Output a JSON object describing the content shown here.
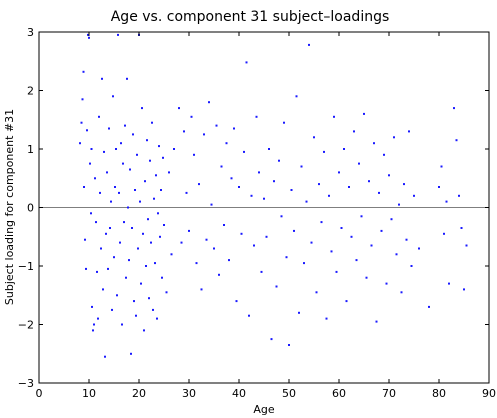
{
  "chart_data": {
    "type": "scatter",
    "title": "Age vs. component 31 subject–loadings",
    "xlabel": "Age",
    "ylabel": "Subject loading for component #31",
    "xlim": [
      0,
      90
    ],
    "ylim": [
      -3,
      3
    ],
    "xticks": [
      "0",
      "10",
      "20",
      "30",
      "40",
      "50",
      "60",
      "70",
      "80",
      "90"
    ],
    "yticks": [
      "3",
      "2",
      "1",
      "0",
      "−1",
      "−2",
      "−3"
    ],
    "grid": false,
    "reference_line_y": 0,
    "point_color": "#1a1aff",
    "points": [
      [
        8.2,
        1.1
      ],
      [
        8.5,
        1.45
      ],
      [
        8.7,
        1.85
      ],
      [
        8.9,
        2.32
      ],
      [
        9.0,
        0.35
      ],
      [
        9.2,
        -0.55
      ],
      [
        9.4,
        -1.05
      ],
      [
        9.6,
        1.32
      ],
      [
        9.8,
        2.95
      ],
      [
        10.0,
        2.9
      ],
      [
        10.2,
        0.75
      ],
      [
        10.4,
        -0.1
      ],
      [
        10.5,
        1.0
      ],
      [
        10.6,
        -1.7
      ],
      [
        10.8,
        -2.1
      ],
      [
        11.0,
        -2.0
      ],
      [
        11.2,
        0.5
      ],
      [
        11.4,
        -0.25
      ],
      [
        11.6,
        -1.1
      ],
      [
        11.8,
        -1.9
      ],
      [
        12.0,
        1.55
      ],
      [
        12.2,
        0.25
      ],
      [
        12.4,
        -0.7
      ],
      [
        12.6,
        2.2
      ],
      [
        12.8,
        -1.4
      ],
      [
        13.0,
        0.95
      ],
      [
        13.2,
        -2.55
      ],
      [
        13.4,
        -0.45
      ],
      [
        13.6,
        0.6
      ],
      [
        13.8,
        -1.05
      ],
      [
        14.0,
        1.35
      ],
      [
        14.2,
        -0.35
      ],
      [
        14.4,
        0.1
      ],
      [
        14.6,
        -1.75
      ],
      [
        14.8,
        1.9
      ],
      [
        15.0,
        -0.85
      ],
      [
        15.2,
        0.35
      ],
      [
        15.4,
        1.0
      ],
      [
        15.6,
        -1.5
      ],
      [
        15.8,
        2.95
      ],
      [
        16.0,
        0.25
      ],
      [
        16.2,
        -0.6
      ],
      [
        16.4,
        1.1
      ],
      [
        16.6,
        -2.0
      ],
      [
        16.8,
        0.75
      ],
      [
        17.0,
        -0.25
      ],
      [
        17.2,
        1.4
      ],
      [
        17.4,
        -1.2
      ],
      [
        17.6,
        2.2
      ],
      [
        17.8,
        0.0
      ],
      [
        18.0,
        -0.9
      ],
      [
        18.2,
        0.65
      ],
      [
        18.4,
        -2.5
      ],
      [
        18.6,
        -0.35
      ],
      [
        18.8,
        1.25
      ],
      [
        19.0,
        -1.6
      ],
      [
        19.2,
        0.3
      ],
      [
        19.4,
        -1.85
      ],
      [
        19.6,
        0.9
      ],
      [
        19.8,
        -0.7
      ],
      [
        20.0,
        2.95
      ],
      [
        20.2,
        0.1
      ],
      [
        20.4,
        -1.3
      ],
      [
        20.6,
        1.7
      ],
      [
        20.8,
        -0.45
      ],
      [
        21.0,
        -2.1
      ],
      [
        21.2,
        0.45
      ],
      [
        21.4,
        -1.0
      ],
      [
        21.6,
        1.15
      ],
      [
        21.8,
        -0.2
      ],
      [
        22.0,
        -1.55
      ],
      [
        22.2,
        0.8
      ],
      [
        22.4,
        -0.6
      ],
      [
        22.6,
        1.45
      ],
      [
        22.8,
        -1.75
      ],
      [
        23.0,
        0.15
      ],
      [
        23.2,
        -0.95
      ],
      [
        23.4,
        0.55
      ],
      [
        23.6,
        -1.9
      ],
      [
        23.8,
        -0.1
      ],
      [
        24.0,
        1.05
      ],
      [
        24.2,
        -0.5
      ],
      [
        24.4,
        0.3
      ],
      [
        24.6,
        -1.2
      ],
      [
        24.8,
        0.85
      ],
      [
        25.0,
        -0.3
      ],
      [
        25.5,
        -1.45
      ],
      [
        26.0,
        0.6
      ],
      [
        26.5,
        -0.8
      ],
      [
        27.0,
        1.0
      ],
      [
        28.0,
        1.7
      ],
      [
        28.5,
        -0.6
      ],
      [
        29.0,
        1.3
      ],
      [
        29.5,
        0.25
      ],
      [
        30.0,
        -0.4
      ],
      [
        30.5,
        1.55
      ],
      [
        31.0,
        0.9
      ],
      [
        31.5,
        -0.95
      ],
      [
        32.0,
        0.4
      ],
      [
        32.5,
        -1.4
      ],
      [
        33.0,
        1.25
      ],
      [
        33.5,
        -0.55
      ],
      [
        34.0,
        1.8
      ],
      [
        34.5,
        0.05
      ],
      [
        35.0,
        -0.7
      ],
      [
        35.5,
        1.4
      ],
      [
        36.0,
        -1.15
      ],
      [
        36.5,
        0.7
      ],
      [
        37.0,
        -0.3
      ],
      [
        37.5,
        1.1
      ],
      [
        38.0,
        -0.9
      ],
      [
        38.5,
        0.5
      ],
      [
        39.0,
        1.35
      ],
      [
        39.5,
        -1.6
      ],
      [
        40.0,
        0.35
      ],
      [
        40.5,
        -0.45
      ],
      [
        41.0,
        0.95
      ],
      [
        41.5,
        2.48
      ],
      [
        42.0,
        -1.85
      ],
      [
        42.5,
        0.2
      ],
      [
        43.0,
        -0.65
      ],
      [
        43.5,
        1.55
      ],
      [
        44.0,
        0.6
      ],
      [
        44.5,
        -1.1
      ],
      [
        45.0,
        0.15
      ],
      [
        45.5,
        -0.5
      ],
      [
        46.0,
        1.0
      ],
      [
        46.5,
        -2.25
      ],
      [
        47.0,
        0.45
      ],
      [
        47.5,
        -1.35
      ],
      [
        48.0,
        0.8
      ],
      [
        48.5,
        -0.15
      ],
      [
        49.0,
        1.45
      ],
      [
        49.5,
        -0.85
      ],
      [
        50.0,
        -2.35
      ],
      [
        50.5,
        0.3
      ],
      [
        51.0,
        -0.4
      ],
      [
        51.5,
        1.9
      ],
      [
        52.0,
        -1.8
      ],
      [
        52.5,
        0.7
      ],
      [
        53.0,
        -0.95
      ],
      [
        53.5,
        0.1
      ],
      [
        54.0,
        2.78
      ],
      [
        54.5,
        -0.6
      ],
      [
        55.0,
        1.2
      ],
      [
        55.5,
        -1.45
      ],
      [
        56.0,
        0.4
      ],
      [
        56.5,
        -0.25
      ],
      [
        57.0,
        0.95
      ],
      [
        57.5,
        -1.9
      ],
      [
        58.0,
        0.2
      ],
      [
        58.5,
        -0.75
      ],
      [
        59.0,
        1.55
      ],
      [
        59.5,
        -1.1
      ],
      [
        60.0,
        0.6
      ],
      [
        60.5,
        -0.35
      ],
      [
        61.0,
        1.0
      ],
      [
        61.5,
        -1.6
      ],
      [
        62.0,
        0.35
      ],
      [
        62.5,
        -0.5
      ],
      [
        63.0,
        1.3
      ],
      [
        63.5,
        -0.9
      ],
      [
        64.0,
        0.75
      ],
      [
        64.5,
        -0.15
      ],
      [
        65.0,
        1.6
      ],
      [
        65.5,
        -1.2
      ],
      [
        66.0,
        0.45
      ],
      [
        66.5,
        -0.65
      ],
      [
        67.0,
        1.1
      ],
      [
        67.5,
        -1.95
      ],
      [
        68.0,
        0.25
      ],
      [
        68.5,
        -0.4
      ],
      [
        69.0,
        0.9
      ],
      [
        69.5,
        -1.3
      ],
      [
        70.0,
        0.55
      ],
      [
        70.5,
        -0.2
      ],
      [
        71.0,
        1.2
      ],
      [
        71.5,
        -0.8
      ],
      [
        72.0,
        0.05
      ],
      [
        72.5,
        -1.45
      ],
      [
        73.0,
        0.4
      ],
      [
        73.5,
        -0.55
      ],
      [
        74.0,
        1.3
      ],
      [
        74.5,
        -1.0
      ],
      [
        75.0,
        0.2
      ],
      [
        76.0,
        -0.7
      ],
      [
        78.0,
        -1.7
      ],
      [
        80.0,
        0.35
      ],
      [
        80.5,
        0.7
      ],
      [
        81.0,
        -0.45
      ],
      [
        81.5,
        0.1
      ],
      [
        82.0,
        -1.3
      ],
      [
        83.0,
        1.7
      ],
      [
        83.5,
        1.15
      ],
      [
        84.0,
        0.2
      ],
      [
        84.5,
        -0.35
      ],
      [
        85.0,
        -1.4
      ],
      [
        85.5,
        -0.65
      ]
    ]
  }
}
